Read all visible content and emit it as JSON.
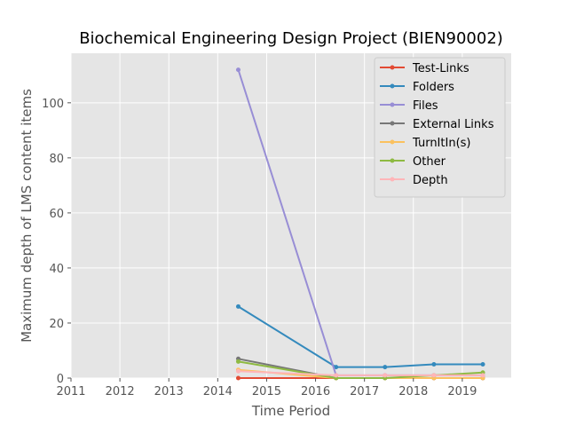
{
  "chart_data": {
    "type": "line",
    "title": "Biochemical Engineering Design Project (BIEN90002)",
    "xlabel": "Time Period",
    "ylabel": "Maximum depth of LMS content items",
    "xlim": [
      2011,
      2020
    ],
    "ylim": [
      0,
      118
    ],
    "xticks": [
      2011,
      2012,
      2013,
      2014,
      2015,
      2016,
      2017,
      2018,
      2019
    ],
    "yticks": [
      0,
      20,
      40,
      60,
      80,
      100
    ],
    "grid": true,
    "legend_position": "top-right",
    "x": [
      2014.42,
      2016.42,
      2017.42,
      2018.42,
      2019.42
    ],
    "series": [
      {
        "name": "Test-Links",
        "color": "#E24A33",
        "values": [
          0,
          0,
          0,
          0,
          0
        ]
      },
      {
        "name": "Folders",
        "color": "#348ABD",
        "values": [
          26,
          4,
          4,
          5,
          5
        ]
      },
      {
        "name": "Files",
        "color": "#988ED5",
        "values": [
          112,
          1,
          1,
          1,
          1
        ]
      },
      {
        "name": "External Links",
        "color": "#777777",
        "values": [
          7,
          0,
          0,
          0,
          0
        ]
      },
      {
        "name": "TurnItIn(s)",
        "color": "#FBC15E",
        "values": [
          3,
          0,
          0,
          0,
          0
        ]
      },
      {
        "name": "Other",
        "color": "#8EBA42",
        "values": [
          6,
          0,
          0,
          1,
          2
        ]
      },
      {
        "name": "Depth",
        "color": "#FFB5B8",
        "values": [
          2.5,
          1,
          1,
          1,
          1
        ]
      }
    ]
  }
}
